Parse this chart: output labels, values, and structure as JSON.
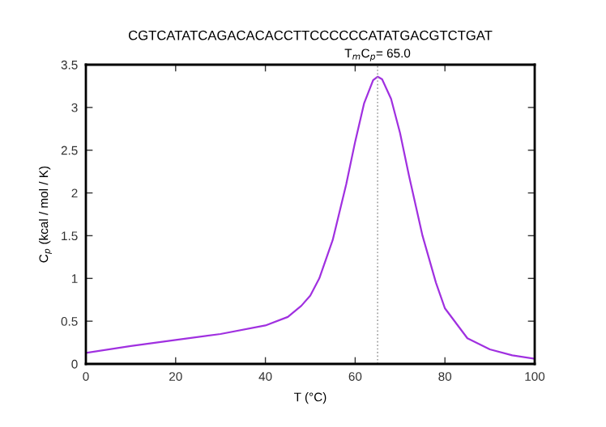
{
  "chart_data": {
    "type": "line",
    "title": "CGTCATATCAGACACACCTTCCCCCCATATGACGTCTGAT",
    "xlabel": "T (°C)",
    "ylabel": "C$_{p}$ (kcal / mol / K)",
    "x": [
      0,
      10,
      20,
      30,
      40,
      45,
      48,
      50,
      52,
      55,
      58,
      60,
      62,
      64,
      65,
      66,
      68,
      70,
      72,
      75,
      78,
      80,
      85,
      90,
      95,
      100
    ],
    "series": [
      {
        "color": "#a030e0",
        "values": [
          0.13,
          0.21,
          0.28,
          0.35,
          0.45,
          0.55,
          0.68,
          0.8,
          1.0,
          1.45,
          2.1,
          2.6,
          3.05,
          3.32,
          3.36,
          3.33,
          3.1,
          2.7,
          2.2,
          1.5,
          0.95,
          0.65,
          0.3,
          0.17,
          0.1,
          0.06
        ]
      }
    ],
    "xlim": [
      0,
      100
    ],
    "xticks": [
      0,
      20,
      40,
      60,
      80,
      100
    ],
    "ylim": [
      0,
      3.5
    ],
    "yticks": [
      0,
      0.5,
      1,
      1.5,
      2,
      2.5,
      3,
      3.5
    ],
    "ref_lines": [
      {
        "axis": "x",
        "value": 65,
        "label": "T$_{m}$C$_{p}$= 65.0",
        "color": "#a0a0a0",
        "line_style": "dotted"
      }
    ],
    "grid": false,
    "legend": false,
    "marker": "none",
    "line_style": "solid"
  }
}
